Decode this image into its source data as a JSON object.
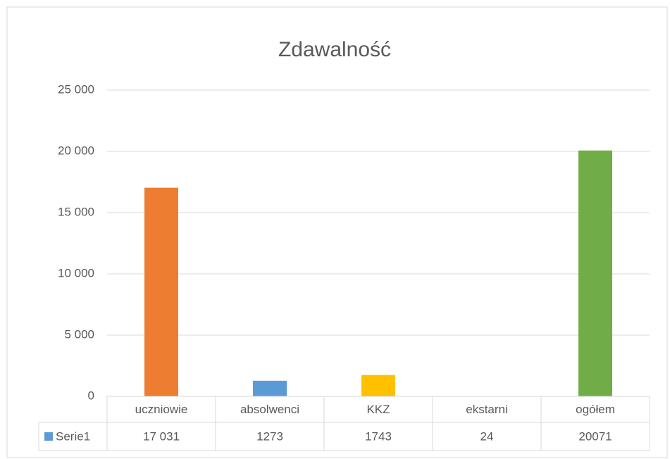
{
  "chart_data": {
    "type": "bar",
    "title": "Zdawalność",
    "categories": [
      "uczniowie",
      "absolwenci",
      "KKZ",
      "ekstarni",
      "ogółem"
    ],
    "series": [
      {
        "name": "Serie1",
        "color": "#5b9bd5",
        "colors": [
          "#ed7d31",
          "#5b9bd5",
          "#ffc000",
          "#a5a5a5",
          "#70ad47"
        ],
        "values": [
          17031,
          1273,
          1743,
          24,
          20071
        ],
        "value_labels": [
          "17 031",
          "1273",
          "1743",
          "24",
          "20071"
        ]
      }
    ],
    "ylim": [
      0,
      25000
    ],
    "yticks": [
      0,
      {
        "value": 5000,
        "label": "5 000"
      },
      {
        "value": 10000,
        "label": "10 000"
      },
      {
        "value": 15000,
        "label": "15 000"
      },
      {
        "value": 20000,
        "label": "20 000"
      },
      {
        "value": 25000,
        "label": "25 000"
      }
    ],
    "grid": true
  }
}
